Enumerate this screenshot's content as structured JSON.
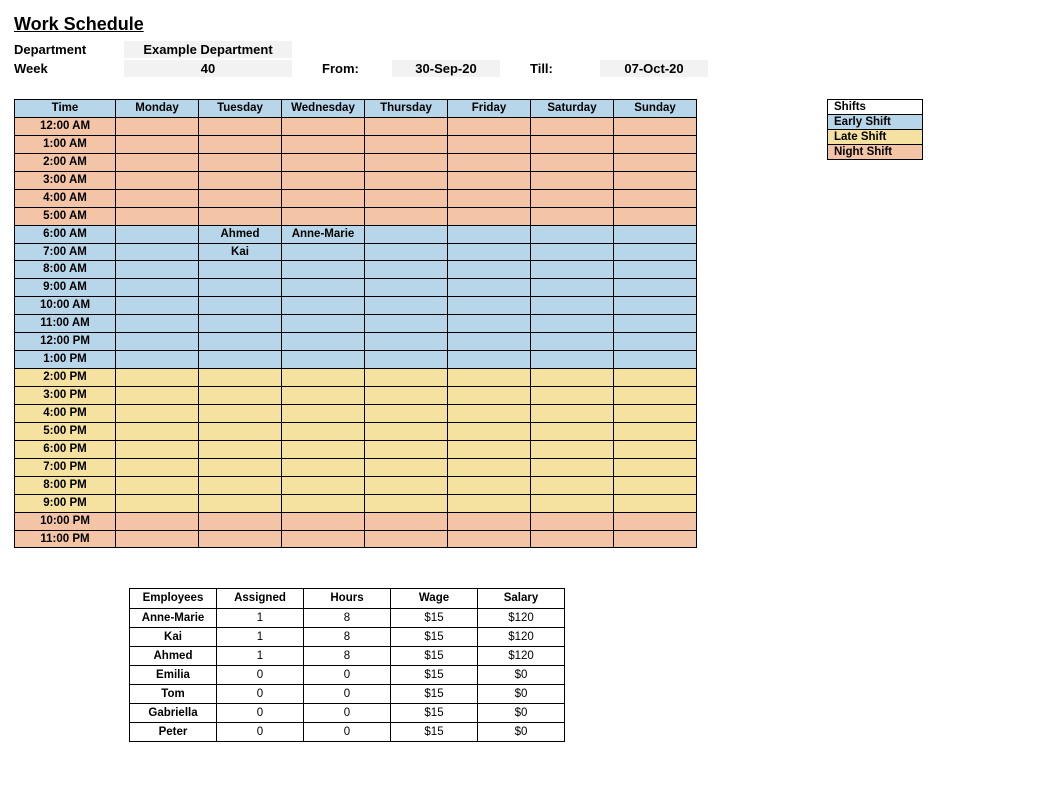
{
  "title": "Work Schedule",
  "meta": {
    "dept_label": "Department",
    "dept_value": "Example Department",
    "week_label": "Week",
    "week_value": "40",
    "from_label": "From:",
    "from_value": "30-Sep-20",
    "till_label": "Till:",
    "till_value": "07-Oct-20"
  },
  "colors": {
    "header": "#b8d6ea",
    "early": "#b8d6ea",
    "late": "#f6e2a0",
    "night": "#f3c4a6",
    "white": "#ffffff"
  },
  "schedule": {
    "header": [
      "Time",
      "Monday",
      "Tuesday",
      "Wednesday",
      "Thursday",
      "Friday",
      "Saturday",
      "Sunday"
    ],
    "rows": [
      {
        "time": "12:00 AM",
        "shift": "night",
        "cells": [
          "",
          "",
          "",
          "",
          "",
          "",
          ""
        ]
      },
      {
        "time": "1:00 AM",
        "shift": "night",
        "cells": [
          "",
          "",
          "",
          "",
          "",
          "",
          ""
        ]
      },
      {
        "time": "2:00 AM",
        "shift": "night",
        "cells": [
          "",
          "",
          "",
          "",
          "",
          "",
          ""
        ]
      },
      {
        "time": "3:00 AM",
        "shift": "night",
        "cells": [
          "",
          "",
          "",
          "",
          "",
          "",
          ""
        ]
      },
      {
        "time": "4:00 AM",
        "shift": "night",
        "cells": [
          "",
          "",
          "",
          "",
          "",
          "",
          ""
        ]
      },
      {
        "time": "5:00 AM",
        "shift": "night",
        "cells": [
          "",
          "",
          "",
          "",
          "",
          "",
          ""
        ]
      },
      {
        "time": "6:00 AM",
        "shift": "early",
        "cells": [
          "",
          "Ahmed",
          "Anne-Marie",
          "",
          "",
          "",
          ""
        ]
      },
      {
        "time": "7:00 AM",
        "shift": "early",
        "cells": [
          "",
          "Kai",
          "",
          "",
          "",
          "",
          ""
        ]
      },
      {
        "time": "8:00 AM",
        "shift": "early",
        "cells": [
          "",
          "",
          "",
          "",
          "",
          "",
          ""
        ]
      },
      {
        "time": "9:00 AM",
        "shift": "early",
        "cells": [
          "",
          "",
          "",
          "",
          "",
          "",
          ""
        ]
      },
      {
        "time": "10:00 AM",
        "shift": "early",
        "cells": [
          "",
          "",
          "",
          "",
          "",
          "",
          ""
        ]
      },
      {
        "time": "11:00 AM",
        "shift": "early",
        "cells": [
          "",
          "",
          "",
          "",
          "",
          "",
          ""
        ]
      },
      {
        "time": "12:00 PM",
        "shift": "early",
        "cells": [
          "",
          "",
          "",
          "",
          "",
          "",
          ""
        ]
      },
      {
        "time": "1:00 PM",
        "shift": "early",
        "cells": [
          "",
          "",
          "",
          "",
          "",
          "",
          ""
        ]
      },
      {
        "time": "2:00 PM",
        "shift": "late",
        "cells": [
          "",
          "",
          "",
          "",
          "",
          "",
          ""
        ]
      },
      {
        "time": "3:00 PM",
        "shift": "late",
        "cells": [
          "",
          "",
          "",
          "",
          "",
          "",
          ""
        ]
      },
      {
        "time": "4:00 PM",
        "shift": "late",
        "cells": [
          "",
          "",
          "",
          "",
          "",
          "",
          ""
        ]
      },
      {
        "time": "5:00 PM",
        "shift": "late",
        "cells": [
          "",
          "",
          "",
          "",
          "",
          "",
          ""
        ]
      },
      {
        "time": "6:00 PM",
        "shift": "late",
        "cells": [
          "",
          "",
          "",
          "",
          "",
          "",
          ""
        ]
      },
      {
        "time": "7:00 PM",
        "shift": "late",
        "cells": [
          "",
          "",
          "",
          "",
          "",
          "",
          ""
        ]
      },
      {
        "time": "8:00 PM",
        "shift": "late",
        "cells": [
          "",
          "",
          "",
          "",
          "",
          "",
          ""
        ]
      },
      {
        "time": "9:00 PM",
        "shift": "late",
        "cells": [
          "",
          "",
          "",
          "",
          "",
          "",
          ""
        ]
      },
      {
        "time": "10:00 PM",
        "shift": "night",
        "cells": [
          "",
          "",
          "",
          "",
          "",
          "",
          ""
        ]
      },
      {
        "time": "11:00 PM",
        "shift": "night",
        "cells": [
          "",
          "",
          "",
          "",
          "",
          "",
          ""
        ]
      }
    ]
  },
  "legend": {
    "title": "Shifts",
    "items": [
      {
        "label": "Early Shift",
        "color_key": "early"
      },
      {
        "label": "Late Shift",
        "color_key": "late"
      },
      {
        "label": "Night Shift",
        "color_key": "night"
      }
    ]
  },
  "employees": {
    "header": [
      "Employees",
      "Assigned",
      "Hours",
      "Wage",
      "Salary"
    ],
    "rows": [
      [
        "Anne-Marie",
        "1",
        "8",
        "$15",
        "$120"
      ],
      [
        "Kai",
        "1",
        "8",
        "$15",
        "$120"
      ],
      [
        "Ahmed",
        "1",
        "8",
        "$15",
        "$120"
      ],
      [
        "Emilia",
        "0",
        "0",
        "$15",
        "$0"
      ],
      [
        "Tom",
        "0",
        "0",
        "$15",
        "$0"
      ],
      [
        "Gabriella",
        "0",
        "0",
        "$15",
        "$0"
      ],
      [
        "Peter",
        "0",
        "0",
        "$15",
        "$0"
      ]
    ]
  }
}
